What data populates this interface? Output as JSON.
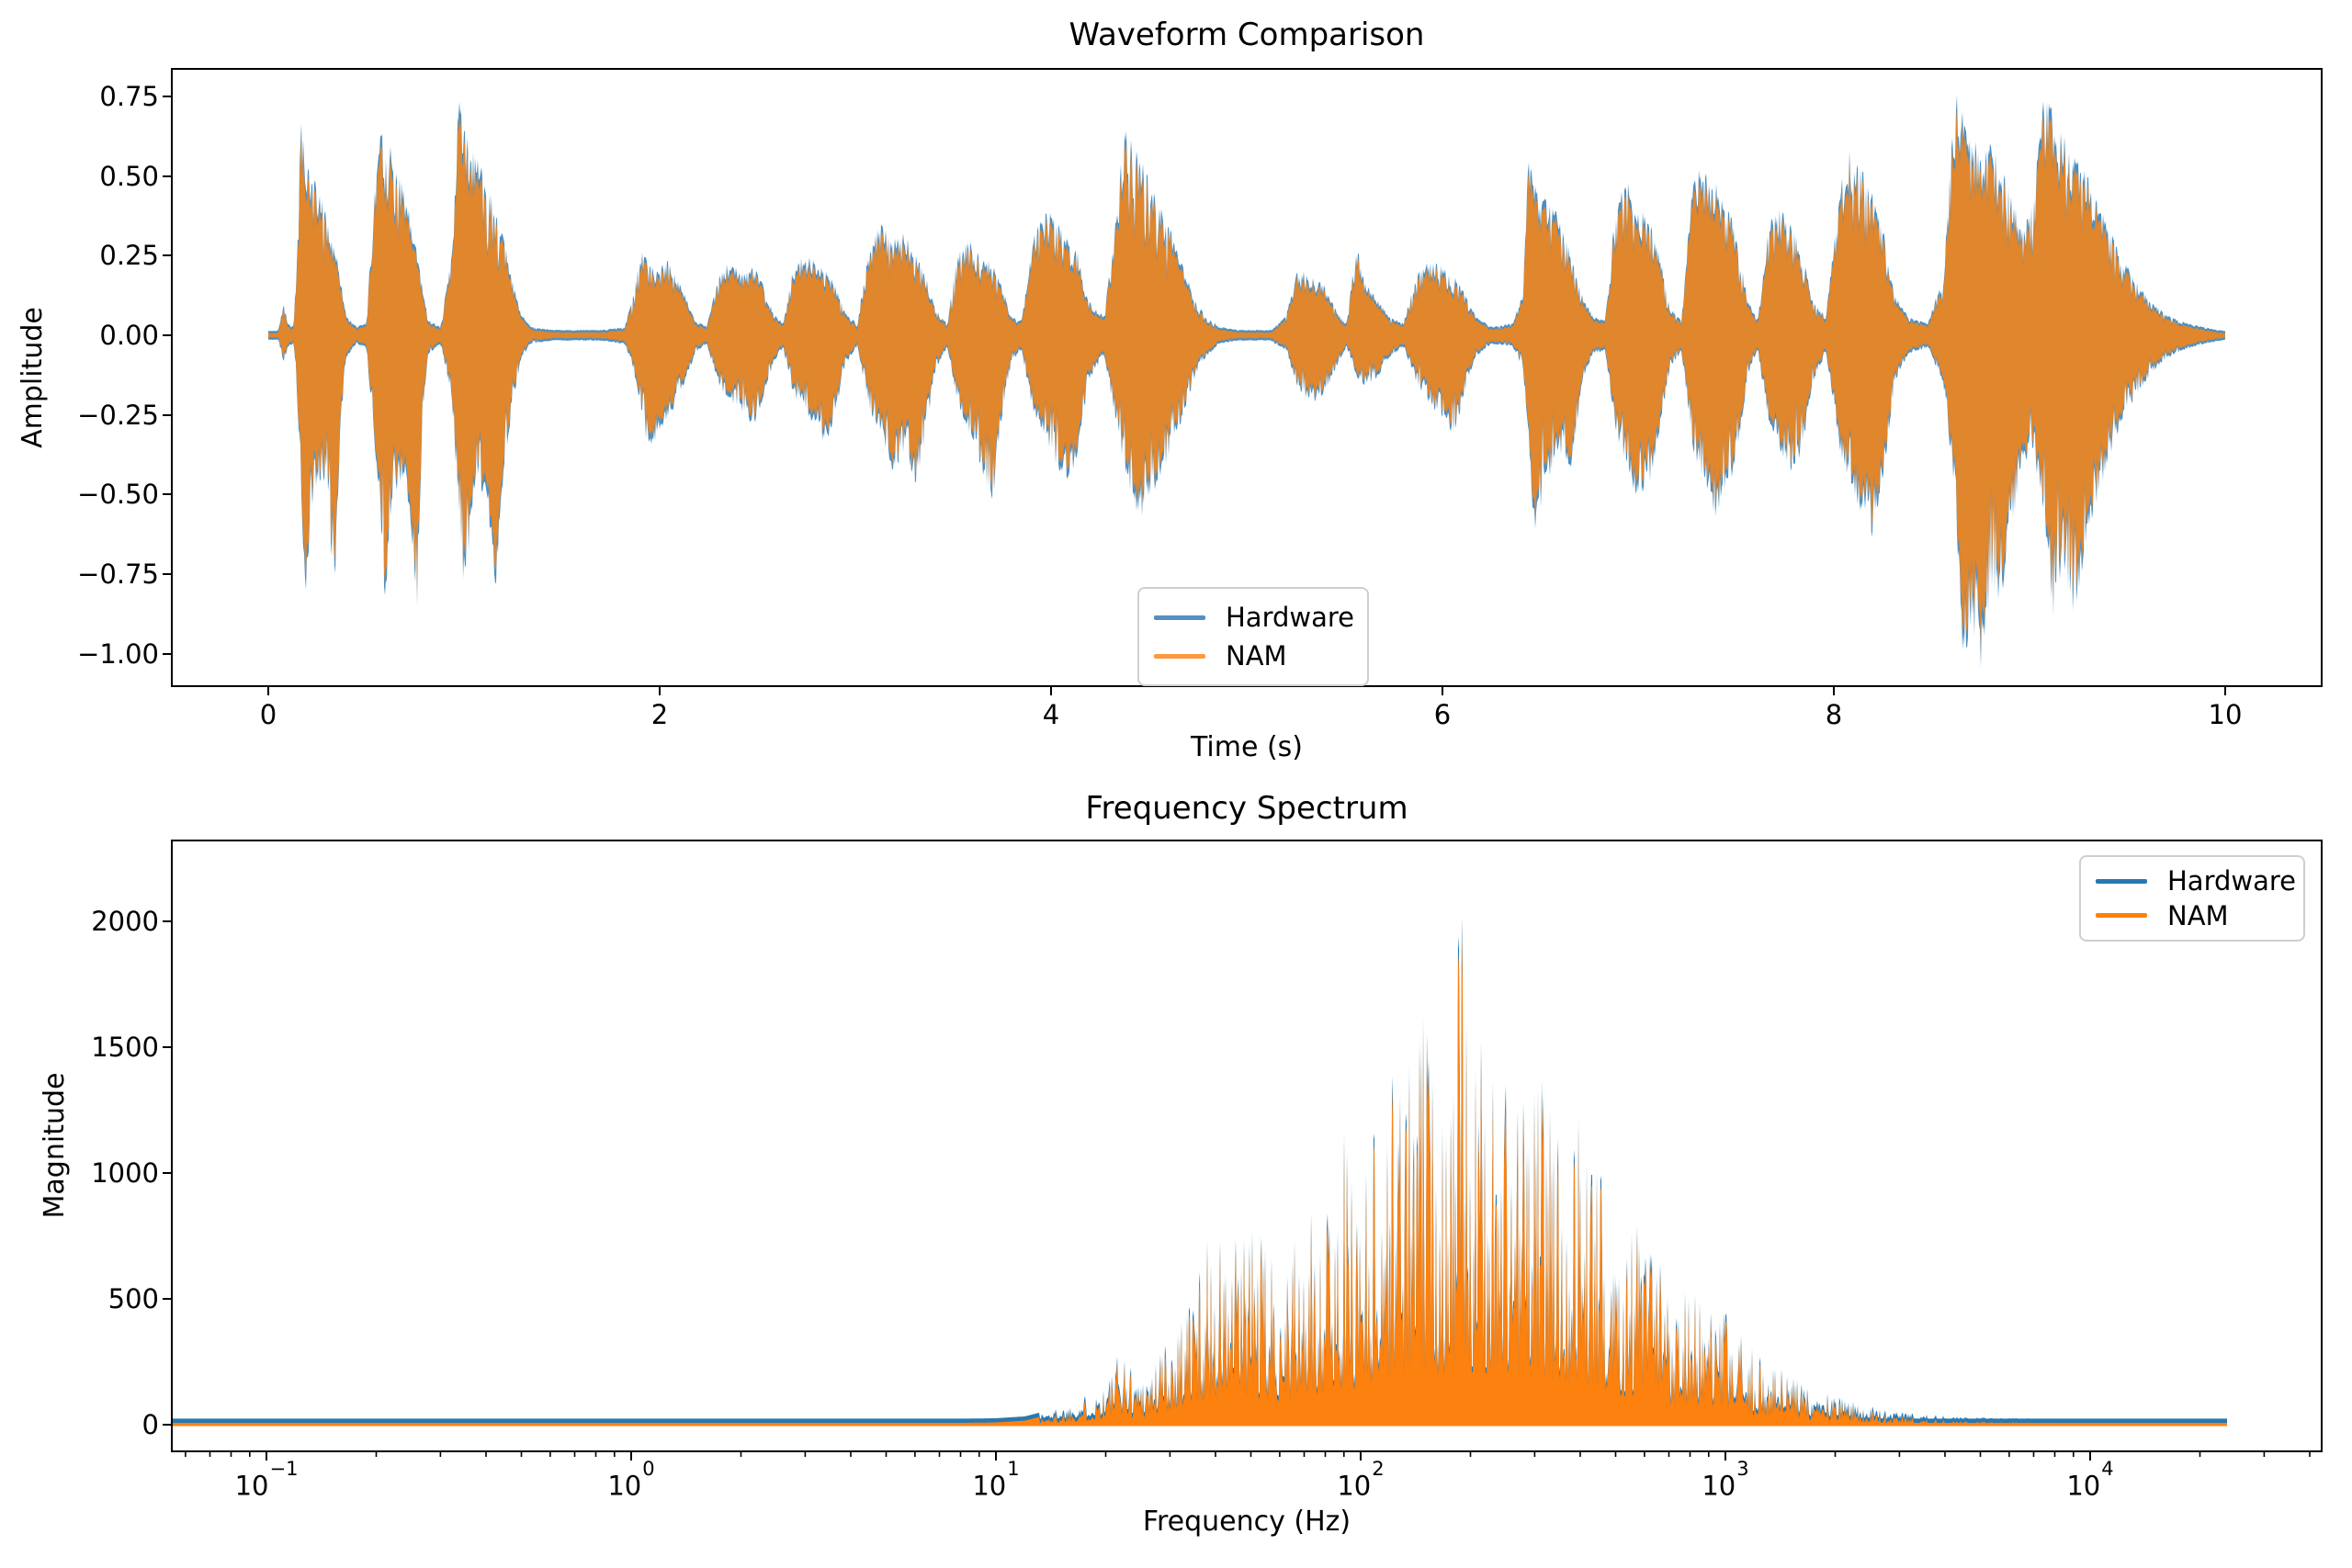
{
  "figure": {
    "background": "#ffffff",
    "text_color": "#000000",
    "spine_color": "#000000"
  },
  "chart_data": [
    {
      "id": "waveform",
      "type": "area",
      "title": "Waveform Comparison",
      "xlabel": "Time (s)",
      "ylabel": "Amplitude",
      "xlim": [
        -0.49,
        10.49
      ],
      "ylim": [
        -1.11,
        0.84
      ],
      "grid": false,
      "legend_position": "lower center-right inside",
      "xticks": {
        "values": [
          0,
          2,
          4,
          6,
          8,
          10
        ],
        "labels": [
          "0",
          "2",
          "4",
          "6",
          "8",
          "10"
        ]
      },
      "yticks": {
        "values": [
          0.75,
          0.5,
          0.25,
          0.0,
          -0.25,
          -0.5,
          -0.75,
          -1.0
        ],
        "labels": [
          "0.75",
          "0.50",
          "0.25",
          "0.00",
          "−0.25",
          "−0.50",
          "−0.75",
          "−1.00"
        ]
      },
      "series": [
        {
          "name": "Hardware",
          "color": "#4e8fc0",
          "legend_color": "#528fc2"
        },
        {
          "name": "NAM",
          "color": "#e0862d",
          "legend_color": "#ff993e"
        }
      ],
      "note": "NAM trace almost perfectly overlays Hardware; blue visible only as thin fringe at peak tips",
      "envelope_columns": [
        "time_s",
        "pos_amplitude",
        "neg_amplitude"
      ],
      "envelope": [
        [
          0,
          0.007,
          0.007
        ],
        [
          0.05,
          0.008,
          0.008
        ],
        [
          0.08,
          0.1,
          0.08
        ],
        [
          0.1,
          0.03,
          0.03
        ],
        [
          0.13,
          0.02,
          0.02
        ],
        [
          0.15,
          0.3,
          0.22
        ],
        [
          0.17,
          0.72,
          0.5
        ],
        [
          0.19,
          0.52,
          0.82
        ],
        [
          0.22,
          0.47,
          0.52
        ],
        [
          0.26,
          0.45,
          0.44
        ],
        [
          0.3,
          0.35,
          0.44
        ],
        [
          0.34,
          0.27,
          0.8
        ],
        [
          0.37,
          0.17,
          0.28
        ],
        [
          0.4,
          0.05,
          0.06
        ],
        [
          0.45,
          0.02,
          0.02
        ],
        [
          0.5,
          0.03,
          0.03
        ],
        [
          0.54,
          0.4,
          0.3
        ],
        [
          0.57,
          0.67,
          0.58
        ],
        [
          0.6,
          0.6,
          0.82
        ],
        [
          0.63,
          0.55,
          0.5
        ],
        [
          0.67,
          0.48,
          0.44
        ],
        [
          0.7,
          0.41,
          0.42
        ],
        [
          0.73,
          0.34,
          0.58
        ],
        [
          0.76,
          0.26,
          0.82
        ],
        [
          0.79,
          0.13,
          0.22
        ],
        [
          0.82,
          0.04,
          0.05
        ],
        [
          0.88,
          0.02,
          0.02
        ],
        [
          0.94,
          0.25,
          0.2
        ],
        [
          0.97,
          0.72,
          0.52
        ],
        [
          1.0,
          0.63,
          0.81
        ],
        [
          1.04,
          0.57,
          0.52
        ],
        [
          1.08,
          0.52,
          0.47
        ],
        [
          1.12,
          0.46,
          0.5
        ],
        [
          1.16,
          0.38,
          0.78
        ],
        [
          1.2,
          0.29,
          0.42
        ],
        [
          1.25,
          0.16,
          0.2
        ],
        [
          1.29,
          0.06,
          0.07
        ],
        [
          1.34,
          0.02,
          0.02
        ],
        [
          1.45,
          0.01,
          0.01
        ],
        [
          1.7,
          0.01,
          0.01
        ],
        [
          1.82,
          0.02,
          0.02
        ],
        [
          1.86,
          0.1,
          0.08
        ],
        [
          1.9,
          0.25,
          0.2
        ],
        [
          1.94,
          0.22,
          0.34
        ],
        [
          1.99,
          0.2,
          0.3
        ],
        [
          2.04,
          0.22,
          0.24
        ],
        [
          2.09,
          0.17,
          0.2
        ],
        [
          2.14,
          0.1,
          0.12
        ],
        [
          2.18,
          0.04,
          0.05
        ],
        [
          2.24,
          0.02,
          0.02
        ],
        [
          2.3,
          0.17,
          0.14
        ],
        [
          2.36,
          0.22,
          0.2
        ],
        [
          2.42,
          0.18,
          0.22
        ],
        [
          2.48,
          0.2,
          0.27
        ],
        [
          2.53,
          0.15,
          0.18
        ],
        [
          2.58,
          0.06,
          0.08
        ],
        [
          2.63,
          0.03,
          0.03
        ],
        [
          2.68,
          0.19,
          0.17
        ],
        [
          2.74,
          0.24,
          0.22
        ],
        [
          2.8,
          0.22,
          0.28
        ],
        [
          2.85,
          0.19,
          0.34
        ],
        [
          2.9,
          0.14,
          0.22
        ],
        [
          2.95,
          0.06,
          0.08
        ],
        [
          3.01,
          0.03,
          0.03
        ],
        [
          3.07,
          0.27,
          0.21
        ],
        [
          3.13,
          0.33,
          0.3
        ],
        [
          3.19,
          0.28,
          0.41
        ],
        [
          3.25,
          0.3,
          0.34
        ],
        [
          3.31,
          0.24,
          0.45
        ],
        [
          3.36,
          0.17,
          0.29
        ],
        [
          3.41,
          0.07,
          0.1
        ],
        [
          3.47,
          0.03,
          0.03
        ],
        [
          3.52,
          0.24,
          0.19
        ],
        [
          3.58,
          0.28,
          0.29
        ],
        [
          3.64,
          0.24,
          0.39
        ],
        [
          3.7,
          0.21,
          0.5
        ],
        [
          3.75,
          0.14,
          0.24
        ],
        [
          3.8,
          0.05,
          0.07
        ],
        [
          3.85,
          0.04,
          0.04
        ],
        [
          3.91,
          0.29,
          0.24
        ],
        [
          3.97,
          0.38,
          0.3
        ],
        [
          4.03,
          0.33,
          0.39
        ],
        [
          4.09,
          0.29,
          0.45
        ],
        [
          4.14,
          0.24,
          0.34
        ],
        [
          4.19,
          0.1,
          0.14
        ],
        [
          4.27,
          0.05,
          0.05
        ],
        [
          4.32,
          0.28,
          0.22
        ],
        [
          4.37,
          0.63,
          0.38
        ],
        [
          4.41,
          0.58,
          0.5
        ],
        [
          4.46,
          0.52,
          0.54
        ],
        [
          4.51,
          0.46,
          0.48
        ],
        [
          4.56,
          0.38,
          0.42
        ],
        [
          4.61,
          0.31,
          0.35
        ],
        [
          4.67,
          0.21,
          0.25
        ],
        [
          4.73,
          0.11,
          0.13
        ],
        [
          4.79,
          0.05,
          0.06
        ],
        [
          4.86,
          0.02,
          0.02
        ],
        [
          4.95,
          0.01,
          0.01
        ],
        [
          5.12,
          0.01,
          0.01
        ],
        [
          5.2,
          0.05,
          0.04
        ],
        [
          5.26,
          0.2,
          0.15
        ],
        [
          5.32,
          0.18,
          0.2
        ],
        [
          5.39,
          0.15,
          0.18
        ],
        [
          5.45,
          0.08,
          0.1
        ],
        [
          5.51,
          0.03,
          0.03
        ],
        [
          5.56,
          0.27,
          0.12
        ],
        [
          5.61,
          0.15,
          0.15
        ],
        [
          5.67,
          0.1,
          0.12
        ],
        [
          5.73,
          0.05,
          0.06
        ],
        [
          5.8,
          0.03,
          0.03
        ],
        [
          5.87,
          0.18,
          0.14
        ],
        [
          5.93,
          0.22,
          0.2
        ],
        [
          6.0,
          0.2,
          0.24
        ],
        [
          6.06,
          0.17,
          0.3
        ],
        [
          6.12,
          0.12,
          0.15
        ],
        [
          6.17,
          0.05,
          0.06
        ],
        [
          6.25,
          0.02,
          0.02
        ],
        [
          6.36,
          0.03,
          0.03
        ],
        [
          6.41,
          0.12,
          0.09
        ],
        [
          6.44,
          0.55,
          0.3
        ],
        [
          6.47,
          0.46,
          0.64
        ],
        [
          6.52,
          0.41,
          0.44
        ],
        [
          6.57,
          0.38,
          0.4
        ],
        [
          6.62,
          0.32,
          0.35
        ],
        [
          6.66,
          0.22,
          0.4
        ],
        [
          6.71,
          0.12,
          0.15
        ],
        [
          6.77,
          0.05,
          0.05
        ],
        [
          6.83,
          0.04,
          0.04
        ],
        [
          6.89,
          0.41,
          0.3
        ],
        [
          6.95,
          0.45,
          0.4
        ],
        [
          7.0,
          0.4,
          0.51
        ],
        [
          7.06,
          0.34,
          0.44
        ],
        [
          7.11,
          0.24,
          0.3
        ],
        [
          7.16,
          0.08,
          0.1
        ],
        [
          7.22,
          0.04,
          0.04
        ],
        [
          7.28,
          0.47,
          0.34
        ],
        [
          7.34,
          0.52,
          0.44
        ],
        [
          7.4,
          0.45,
          0.55
        ],
        [
          7.46,
          0.39,
          0.47
        ],
        [
          7.51,
          0.27,
          0.34
        ],
        [
          7.56,
          0.1,
          0.12
        ],
        [
          7.61,
          0.04,
          0.04
        ],
        [
          7.67,
          0.34,
          0.27
        ],
        [
          7.73,
          0.38,
          0.35
        ],
        [
          7.79,
          0.32,
          0.41
        ],
        [
          7.84,
          0.24,
          0.34
        ],
        [
          7.89,
          0.1,
          0.14
        ],
        [
          7.96,
          0.05,
          0.05
        ],
        [
          8.03,
          0.44,
          0.34
        ],
        [
          8.08,
          0.57,
          0.44
        ],
        [
          8.14,
          0.5,
          0.54
        ],
        [
          8.2,
          0.42,
          0.61
        ],
        [
          8.26,
          0.29,
          0.39
        ],
        [
          8.31,
          0.12,
          0.14
        ],
        [
          8.38,
          0.05,
          0.05
        ],
        [
          8.48,
          0.03,
          0.03
        ],
        [
          8.56,
          0.18,
          0.14
        ],
        [
          8.62,
          0.73,
          0.48
        ],
        [
          8.66,
          0.66,
          0.99
        ],
        [
          8.71,
          0.6,
          0.88
        ],
        [
          8.76,
          0.56,
          1.02
        ],
        [
          8.81,
          0.58,
          0.74
        ],
        [
          8.86,
          0.5,
          0.84
        ],
        [
          8.91,
          0.41,
          0.6
        ],
        [
          8.96,
          0.31,
          0.4
        ],
        [
          9.02,
          0.4,
          0.34
        ],
        [
          9.07,
          0.75,
          0.54
        ],
        [
          9.12,
          0.66,
          0.84
        ],
        [
          9.17,
          0.6,
          0.7
        ],
        [
          9.23,
          0.55,
          0.87
        ],
        [
          9.29,
          0.48,
          0.6
        ],
        [
          9.35,
          0.4,
          0.5
        ],
        [
          9.41,
          0.31,
          0.36
        ],
        [
          9.47,
          0.23,
          0.26
        ],
        [
          9.54,
          0.16,
          0.18
        ],
        [
          9.61,
          0.1,
          0.12
        ],
        [
          9.69,
          0.06,
          0.07
        ],
        [
          9.78,
          0.035,
          0.04
        ],
        [
          9.88,
          0.02,
          0.022
        ],
        [
          9.96,
          0.01,
          0.012
        ],
        [
          10,
          0.007,
          0.008
        ]
      ]
    },
    {
      "id": "spectrum",
      "type": "area",
      "title": "Frequency Spectrum",
      "xlabel": "Frequency (Hz)",
      "ylabel": "Magnitude",
      "xscale": "log",
      "xlim": [
        0.055,
        43000
      ],
      "ylim": [
        -112,
        2342
      ],
      "grid": false,
      "legend_position": "upper right inside",
      "xticks": {
        "base": "10",
        "exponents": [
          "−1",
          "0",
          "1",
          "2",
          "3",
          "4"
        ],
        "values": [
          0.1,
          1,
          10,
          100,
          1000,
          10000
        ]
      },
      "yticks": {
        "values": [
          0,
          500,
          1000,
          1500,
          2000
        ],
        "labels": [
          "0",
          "500",
          "1000",
          "1500",
          "2000"
        ]
      },
      "series": [
        {
          "name": "Hardware",
          "color": "#2878b0",
          "legend_color": "#2878b0"
        },
        {
          "name": "NAM",
          "color": "#fd810e",
          "legend_color": "#fd810e"
        }
      ],
      "peak": {
        "frequency_hz": 188,
        "magnitude": 2230
      },
      "data_range_hz": [
        0.055,
        24000
      ],
      "envelope_columns": [
        "frequency_hz",
        "magnitude_envelope"
      ],
      "envelope": [
        [
          0.055,
          4
        ],
        [
          0.3,
          4
        ],
        [
          1,
          4
        ],
        [
          2,
          4
        ],
        [
          4,
          5
        ],
        [
          7,
          6
        ],
        [
          10,
          9
        ],
        [
          12,
          16
        ],
        [
          14,
          40
        ],
        [
          16,
          70
        ],
        [
          18,
          110
        ],
        [
          20,
          160
        ],
        [
          22,
          290
        ],
        [
          24,
          210
        ],
        [
          27,
          240
        ],
        [
          30,
          380
        ],
        [
          33,
          520
        ],
        [
          36,
          640
        ],
        [
          40,
          780
        ],
        [
          43,
          690
        ],
        [
          47,
          740
        ],
        [
          50,
          820
        ],
        [
          54,
          700
        ],
        [
          58,
          640
        ],
        [
          62,
          760
        ],
        [
          66,
          700
        ],
        [
          70,
          720
        ],
        [
          75,
          850
        ],
        [
          80,
          950
        ],
        [
          85,
          880
        ],
        [
          90,
          1140
        ],
        [
          95,
          1000
        ],
        [
          100,
          1090
        ],
        [
          105,
          1250
        ],
        [
          112,
          1170
        ],
        [
          120,
          1360
        ],
        [
          128,
          1600
        ],
        [
          135,
          1450
        ],
        [
          142,
          1540
        ],
        [
          150,
          1620
        ],
        [
          158,
          1500
        ],
        [
          166,
          1460
        ],
        [
          174,
          1560
        ],
        [
          182,
          1660
        ],
        [
          188,
          2230
        ],
        [
          194,
          1620
        ],
        [
          202,
          1560
        ],
        [
          212,
          1480
        ],
        [
          222,
          1390
        ],
        [
          235,
          1500
        ],
        [
          250,
          1460
        ],
        [
          265,
          1400
        ],
        [
          280,
          1340
        ],
        [
          295,
          1270
        ],
        [
          310,
          1500
        ],
        [
          325,
          1300
        ],
        [
          345,
          1180
        ],
        [
          365,
          1240
        ],
        [
          385,
          1290
        ],
        [
          405,
          1200
        ],
        [
          430,
          1060
        ],
        [
          455,
          980
        ],
        [
          480,
          1040
        ],
        [
          510,
          900
        ],
        [
          540,
          800
        ],
        [
          575,
          830
        ],
        [
          610,
          760
        ],
        [
          650,
          680
        ],
        [
          690,
          600
        ],
        [
          730,
          560
        ],
        [
          780,
          620
        ],
        [
          830,
          520
        ],
        [
          880,
          440
        ],
        [
          930,
          410
        ],
        [
          980,
          450
        ],
        [
          1050,
          360
        ],
        [
          1150,
          300
        ],
        [
          1300,
          240
        ],
        [
          1450,
          200
        ],
        [
          1650,
          150
        ],
        [
          1850,
          120
        ],
        [
          2100,
          90
        ],
        [
          2400,
          62
        ],
        [
          2800,
          42
        ],
        [
          3300,
          28
        ],
        [
          4000,
          19
        ],
        [
          5000,
          13
        ],
        [
          6500,
          9
        ],
        [
          8500,
          7
        ],
        [
          11000,
          6
        ],
        [
          15000,
          5
        ],
        [
          20000,
          5
        ],
        [
          24000,
          5
        ]
      ]
    }
  ]
}
